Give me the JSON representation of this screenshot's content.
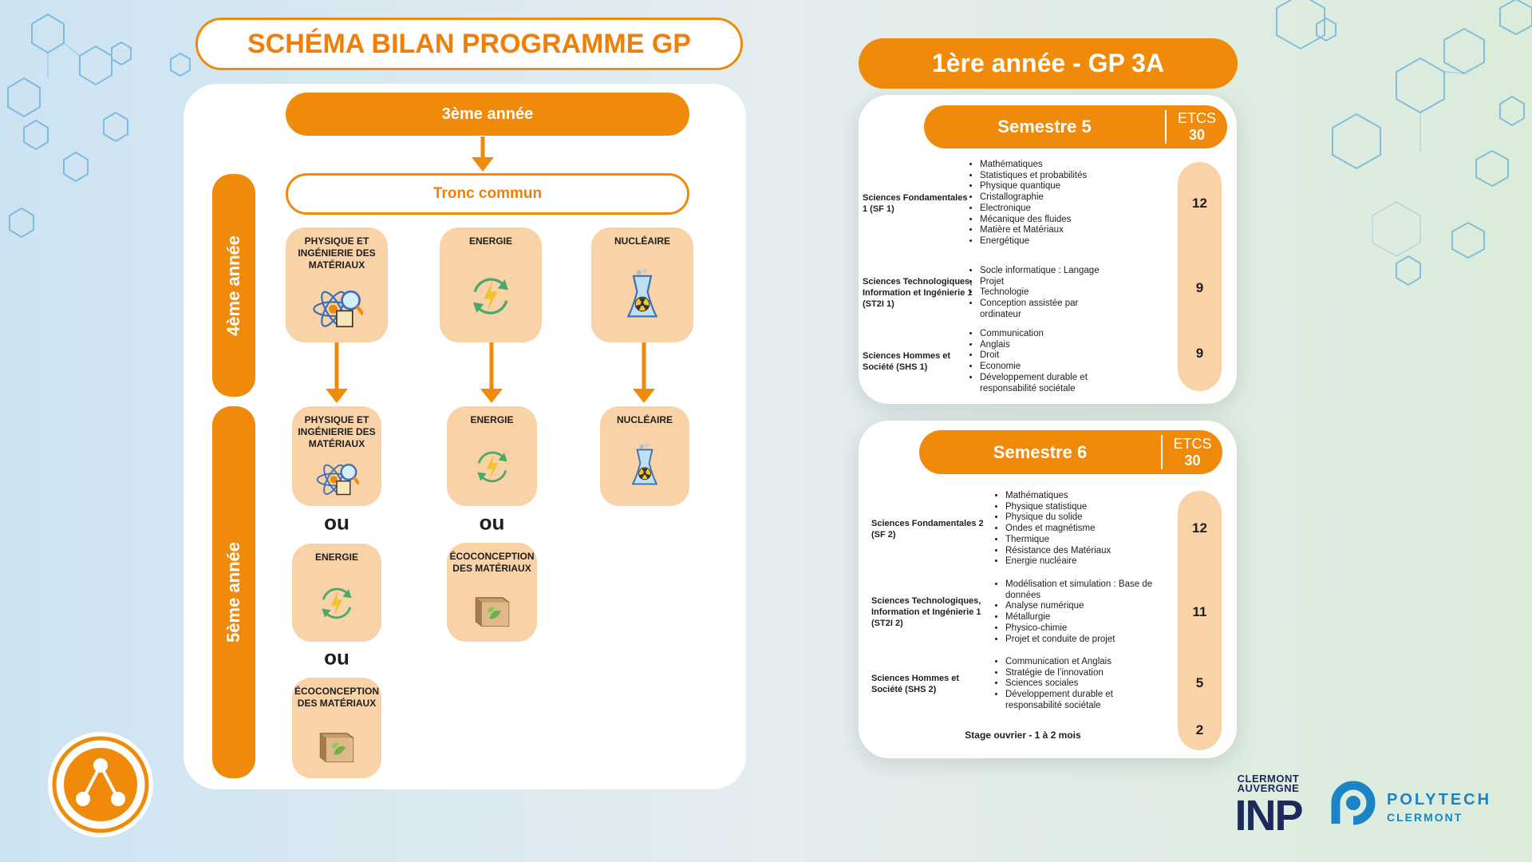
{
  "left": {
    "title": "SCHÉMA BILAN PROGRAMME GP",
    "year3": "3ème année",
    "tronc": "Tronc commun",
    "year4": "4ème année",
    "year5": "5ème année",
    "year4_options": [
      "PHYSIQUE ET INGÉNIERIE DES MATÉRIAUX",
      "ENERGIE",
      "NUCLÉAIRE"
    ],
    "year5_columns": [
      [
        "PHYSIQUE ET INGÉNIERIE DES MATÉRIAUX",
        "ou",
        "ENERGIE",
        "ou",
        "ÉCOCONCEPTION DES MATÉRIAUX"
      ],
      [
        "ENERGIE",
        "ou",
        "ÉCOCONCEPTION DES MATÉRIAUX"
      ],
      [
        "NUCLÉAIRE"
      ]
    ]
  },
  "right": {
    "title": "1ère année - GP 3A",
    "semesters": [
      {
        "name": "Semestre 5",
        "etcs_label": "ETCS",
        "etcs_total": 30,
        "rows": [
          {
            "label": "Sciences Fondamentales 1 (SF 1)",
            "credits": 12,
            "items": [
              "Mathématiques",
              "Statistiques et probabilités",
              "Physique quantique",
              "Cristallographie",
              "Electronique",
              "Mécanique des fluides",
              "Matière et Matériaux",
              "Energétique"
            ]
          },
          {
            "label": "Sciences Technologiques, Information et Ingénierie 1 (ST2I 1)",
            "credits": 9,
            "items": [
              "Socle informatique : Langage",
              "Projet",
              "Technologie",
              "Conception assistée par ordinateur"
            ]
          },
          {
            "label": "Sciences Hommes et Société (SHS 1)",
            "credits": 9,
            "items": [
              "Communication",
              "Anglais",
              "Droit",
              "Economie",
              "Développement durable et responsabilité sociétale"
            ]
          }
        ]
      },
      {
        "name": "Semestre 6",
        "etcs_label": "ETCS",
        "etcs_total": 30,
        "rows": [
          {
            "label": "Sciences Fondamentales 2 (SF 2)",
            "credits": 12,
            "items": [
              "Mathématiques",
              "Physique statistique",
              "Physique du solide",
              "Ondes et magnétisme",
              "Thermique",
              "Résistance des Matériaux",
              "Energie nucléaire"
            ]
          },
          {
            "label": "Sciences Technologiques, Information et Ingénierie 1 (ST2I 2)",
            "credits": 11,
            "items": [
              "Modélisation et simulation : Base de données",
              "Analyse numérique",
              "Métallurgie",
              "Physico-chimie",
              "Projet et conduite de projet"
            ]
          },
          {
            "label": "Sciences Hommes et Société (SHS 2)",
            "credits": 5,
            "items": [
              "Communication et Anglais",
              "Stratégie de l’innovation",
              "Sciences sociales",
              "Développement durable et responsabilité sociétale"
            ]
          }
        ],
        "stage": {
          "label": "Stage ouvrier - 1 à 2 mois",
          "credits": 2
        }
      }
    ]
  },
  "logos": {
    "inp_line1": "CLERMONT",
    "inp_line2": "AUVERGNE",
    "inp": "INP",
    "polytech": "POLYTECH",
    "polytech_sub": "CLERMONT"
  }
}
